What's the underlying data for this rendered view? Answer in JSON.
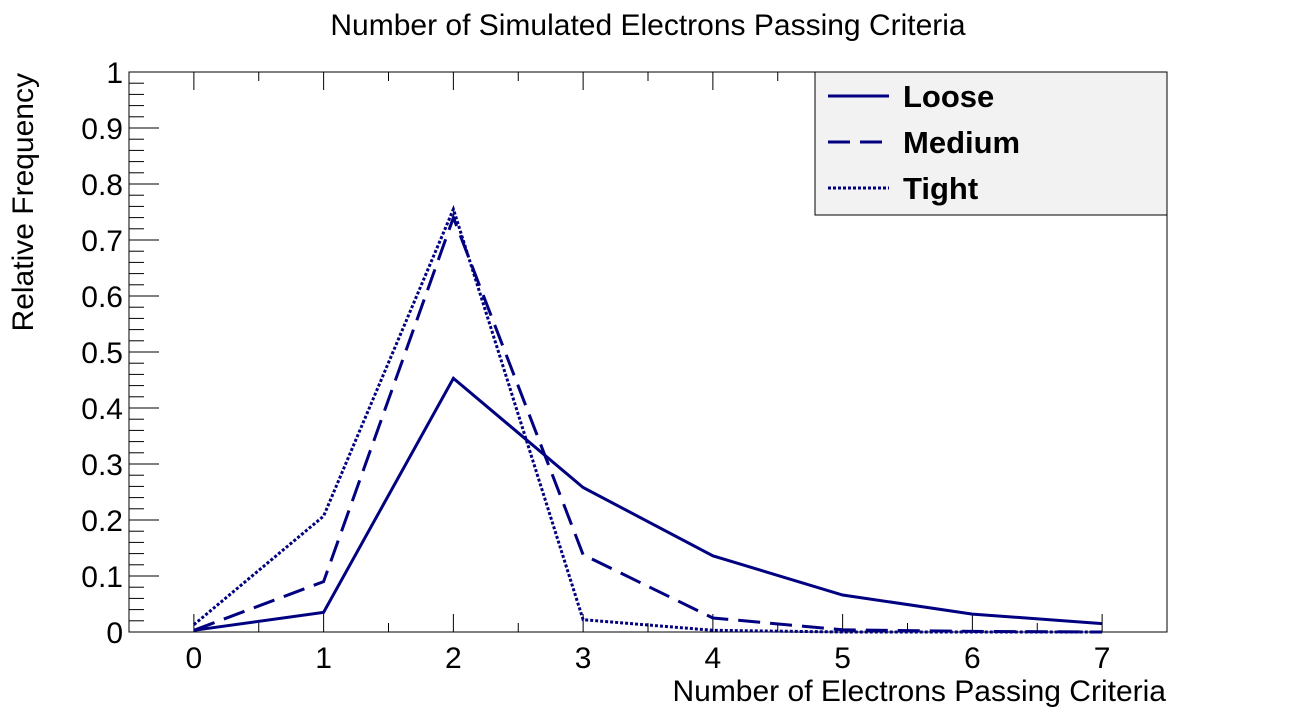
{
  "chart_data": {
    "type": "line",
    "title": "Number of Simulated Electrons Passing Criteria",
    "xlabel": "Number of Electrons Passing Criteria",
    "ylabel": "Relative Frequency",
    "xlim": [
      -0.5,
      7.5
    ],
    "ylim": [
      0,
      1
    ],
    "x_ticks": [
      0,
      1,
      2,
      3,
      4,
      5,
      6,
      7
    ],
    "y_ticks": [
      0,
      0.1,
      0.2,
      0.3,
      0.4,
      0.5,
      0.6,
      0.7,
      0.8,
      0.9,
      1
    ],
    "y_tick_labels": [
      "0",
      "0.1",
      "0.2",
      "0.3",
      "0.4",
      "0.5",
      "0.6",
      "0.7",
      "0.8",
      "0.9",
      "1"
    ],
    "grid": false,
    "legend_position": "top-right",
    "x": [
      0,
      1,
      2,
      3,
      4,
      5,
      6,
      7
    ],
    "series": [
      {
        "name": "Loose",
        "style": "solid",
        "color": "#000080",
        "values": [
          0.003,
          0.035,
          0.453,
          0.258,
          0.136,
          0.066,
          0.032,
          0.015
        ]
      },
      {
        "name": "Medium",
        "style": "dashed",
        "color": "#000080",
        "values": [
          0.003,
          0.09,
          0.74,
          0.138,
          0.025,
          0.004,
          0.001,
          0.0
        ]
      },
      {
        "name": "Tight",
        "style": "dotted",
        "color": "#000080",
        "values": [
          0.013,
          0.207,
          0.755,
          0.022,
          0.003,
          0.0,
          0.0,
          0.0
        ]
      }
    ]
  }
}
